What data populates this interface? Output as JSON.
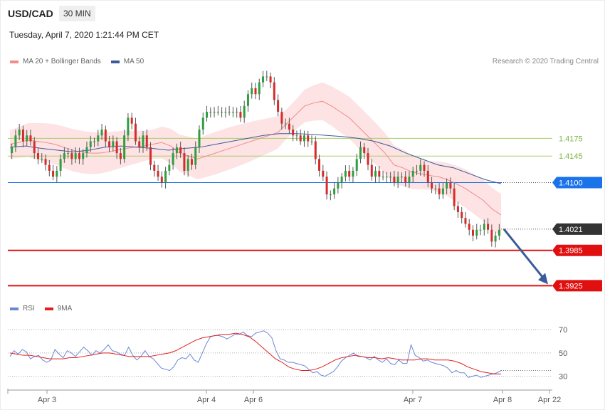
{
  "header": {
    "symbol": "USD/CAD",
    "timeframe": "30 MIN",
    "datetime": "Tuesday, April 7, 2020 1:21:44 PM CET",
    "credit": "Research © 2020 Trading Central"
  },
  "legend_top": [
    {
      "label": "MA 20 + Bollinger Bands",
      "color": "#f28b8b"
    },
    {
      "label": "MA 50",
      "color": "#3b5c99"
    }
  ],
  "legend_bottom": [
    {
      "label": "RSI",
      "color": "#6b86d6"
    },
    {
      "label": "9MA",
      "color": "#e02020"
    }
  ],
  "chart_data": [
    {
      "type": "candlestick",
      "title": "USD/CAD",
      "timeframe": "30 MIN",
      "x_ticks": [
        "Apr 3",
        "Apr 4",
        "Apr 6",
        "Apr 7",
        "Apr 8",
        "Apr 22"
      ],
      "ylim": [
        1.3905,
        1.4295
      ],
      "levels": [
        {
          "label": "1.4175",
          "value": 1.4175,
          "kind": "resistance-green",
          "color": "#a8cc6a"
        },
        {
          "label": "1.4145",
          "value": 1.4145,
          "kind": "resistance-green",
          "color": "#a8cc6a"
        },
        {
          "label": "1.4100",
          "value": 1.41,
          "kind": "pivot",
          "color": "#1a73e8"
        },
        {
          "label": "1.4021",
          "value": 1.4021,
          "kind": "last-price",
          "color": "#333333"
        },
        {
          "label": "1.3985",
          "value": 1.3985,
          "kind": "support",
          "color": "#e01010"
        },
        {
          "label": "1.3925",
          "value": 1.3925,
          "kind": "support",
          "color": "#e01010"
        }
      ],
      "close_series": [
        1.416,
        1.418,
        1.419,
        1.417,
        1.418,
        1.417,
        1.415,
        1.414,
        1.414,
        1.413,
        1.412,
        1.411,
        1.412,
        1.414,
        1.415,
        1.415,
        1.414,
        1.415,
        1.414,
        1.415,
        1.416,
        1.417,
        1.417,
        1.418,
        1.419,
        1.417,
        1.416,
        1.417,
        1.415,
        1.414,
        1.418,
        1.421,
        1.42,
        1.417,
        1.416,
        1.418,
        1.416,
        1.413,
        1.412,
        1.411,
        1.41,
        1.412,
        1.413,
        1.415,
        1.416,
        1.415,
        1.412,
        1.414,
        1.413,
        1.416,
        1.419,
        1.421,
        1.422,
        1.422,
        1.422,
        1.422,
        1.422,
        1.422,
        1.422,
        1.422,
        1.422,
        1.421,
        1.423,
        1.425,
        1.426,
        1.425,
        1.427,
        1.428,
        1.428,
        1.427,
        1.424,
        1.422,
        1.42,
        1.42,
        1.419,
        1.418,
        1.418,
        1.417,
        1.418,
        1.417,
        1.417,
        1.414,
        1.412,
        1.411,
        1.408,
        1.408,
        1.409,
        1.41,
        1.411,
        1.412,
        1.411,
        1.412,
        1.414,
        1.416,
        1.415,
        1.413,
        1.411,
        1.412,
        1.411,
        1.411,
        1.411,
        1.411,
        1.41,
        1.411,
        1.411,
        1.41,
        1.411,
        1.412,
        1.412,
        1.413,
        1.412,
        1.41,
        1.409,
        1.409,
        1.408,
        1.409,
        1.41,
        1.409,
        1.406,
        1.405,
        1.404,
        1.403,
        1.402,
        1.401,
        1.402,
        1.402,
        1.403,
        1.402,
        1.4,
        1.401,
        1.402
      ],
      "ma20_series": [
        1.4165,
        1.4168,
        1.4172,
        1.417,
        1.4168,
        1.4165,
        1.416,
        1.4155,
        1.4152,
        1.415,
        1.415,
        1.4152,
        1.4155,
        1.4158,
        1.416,
        1.4162,
        1.4165,
        1.4168,
        1.4162,
        1.415,
        1.4145,
        1.414,
        1.4145,
        1.415,
        1.4155,
        1.416,
        1.4165,
        1.417,
        1.4175,
        1.418,
        1.4185,
        1.42,
        1.4215,
        1.423,
        1.4235,
        1.4238,
        1.423,
        1.422,
        1.421,
        1.4195,
        1.418,
        1.4165,
        1.415,
        1.413,
        1.4125,
        1.4118,
        1.4115,
        1.4112,
        1.411,
        1.4105,
        1.4098,
        1.409,
        1.408,
        1.407,
        1.4055,
        1.4045
      ],
      "ma50_series": [
        1.416,
        1.4162,
        1.4158,
        1.4155,
        1.4152,
        1.4155,
        1.416,
        1.4162,
        1.416,
        1.4158,
        1.4155,
        1.4158,
        1.416,
        1.4165,
        1.417,
        1.4175,
        1.418,
        1.4183,
        1.4183,
        1.4182,
        1.418,
        1.4178,
        1.4175,
        1.417,
        1.4162,
        1.415,
        1.414,
        1.413,
        1.4125,
        1.4115,
        1.4105,
        1.4098
      ],
      "forecast_arrow": {
        "from": 1.4021,
        "to": 1.3925
      }
    },
    {
      "type": "line",
      "series": [
        {
          "name": "RSI",
          "values": [
            47,
            52,
            49,
            53,
            51,
            45,
            47,
            48,
            44,
            42,
            44,
            53,
            49,
            46,
            52,
            50,
            47,
            51,
            55,
            52,
            48,
            52,
            50,
            53,
            57,
            52,
            51,
            49,
            48,
            55,
            48,
            44,
            47,
            52,
            47,
            45,
            41,
            37,
            36,
            35,
            38,
            44,
            46,
            45,
            49,
            44,
            42,
            50,
            58,
            64,
            65,
            65,
            64,
            62,
            64,
            66,
            66,
            68,
            65,
            64,
            67,
            68,
            69,
            67,
            63,
            52,
            45,
            44,
            42,
            42,
            41,
            40,
            39,
            36,
            33,
            34,
            31,
            30,
            32,
            34,
            38,
            43,
            46,
            48,
            50,
            47,
            47,
            46,
            44,
            47,
            44,
            42,
            45,
            41,
            40,
            44,
            41,
            41,
            57,
            48,
            46,
            43,
            44,
            42,
            41,
            40,
            39,
            37,
            33,
            35,
            33,
            33,
            29,
            30,
            31,
            29,
            30,
            31,
            32,
            33,
            35
          ]
        },
        {
          "name": "9MA",
          "values": [
            50,
            49,
            48,
            48,
            47,
            46,
            45,
            45,
            45,
            46,
            46,
            47,
            48,
            49,
            50,
            50,
            49,
            48,
            47,
            47,
            47,
            47,
            48,
            49,
            50,
            52,
            55,
            58,
            61,
            63,
            64,
            65,
            66,
            66,
            67,
            66,
            64,
            60,
            55,
            50,
            45,
            42,
            38,
            36,
            35,
            35,
            36,
            38,
            41,
            44,
            46,
            47,
            48,
            47,
            46,
            46,
            45,
            46,
            45,
            44,
            44,
            44,
            45,
            45,
            44,
            44,
            44,
            43,
            41,
            38,
            36,
            34,
            33,
            32,
            32
          ]
        }
      ],
      "y_ticks": [
        30,
        50,
        70
      ],
      "ylim": [
        20,
        75
      ],
      "grid": true
    }
  ]
}
